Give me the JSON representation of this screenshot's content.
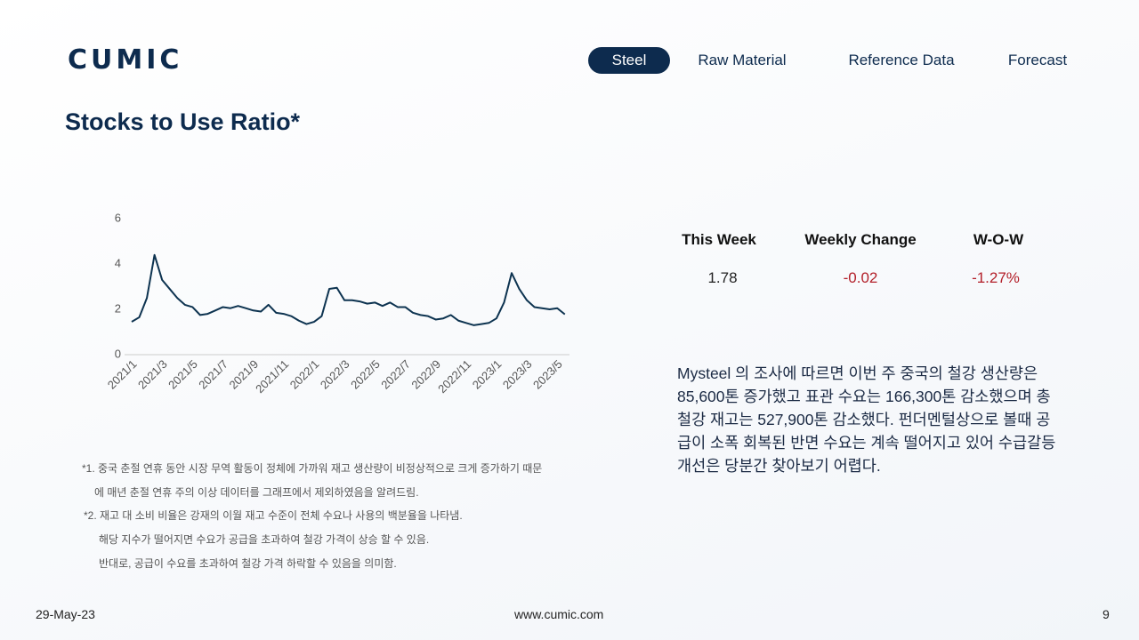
{
  "header": {
    "logo": "CUMIC",
    "nav": [
      "Steel",
      "Raw Material",
      "Reference Data",
      "Forecast"
    ],
    "active_nav": 0
  },
  "title": "Stocks to Use Ratio*",
  "chart_data": {
    "type": "line",
    "color": "#0d3350",
    "grid": false,
    "categories": [
      "2021/1",
      null,
      null,
      null,
      "2021/3",
      null,
      null,
      null,
      "2021/5",
      null,
      null,
      null,
      "2021/7",
      null,
      null,
      null,
      "2021/9",
      null,
      null,
      null,
      "2021/11",
      null,
      null,
      null,
      "2022/1",
      null,
      null,
      null,
      "2022/3",
      null,
      null,
      null,
      "2022/5",
      null,
      null,
      null,
      "2022/7",
      null,
      null,
      null,
      "2022/9",
      null,
      null,
      null,
      "2022/11",
      null,
      null,
      null,
      "2023/1",
      null,
      null,
      null,
      "2023/3",
      null,
      null,
      null,
      "2023/5",
      null
    ],
    "values": [
      1.45,
      1.65,
      2.5,
      4.4,
      3.3,
      2.9,
      2.5,
      2.2,
      2.1,
      1.75,
      1.8,
      1.95,
      2.1,
      2.05,
      2.15,
      2.05,
      1.95,
      1.9,
      2.2,
      1.85,
      1.8,
      1.7,
      1.5,
      1.35,
      1.45,
      1.7,
      2.9,
      2.95,
      2.4,
      2.4,
      2.35,
      2.25,
      2.3,
      2.15,
      2.3,
      2.1,
      2.1,
      1.85,
      1.75,
      1.7,
      1.55,
      1.6,
      1.75,
      1.5,
      1.4,
      1.3,
      1.35,
      1.4,
      1.6,
      2.3,
      3.6,
      2.9,
      2.4,
      2.1,
      2.05,
      2.0,
      2.05,
      1.78
    ],
    "ylim": [
      0,
      6
    ],
    "yticks": [
      0,
      2,
      4,
      6
    ]
  },
  "summary": {
    "headers": [
      "This Week",
      "Weekly Change",
      "W-O-W"
    ],
    "values": [
      "1.78",
      "-0.02",
      "-1.27%"
    ]
  },
  "commentary": "Mysteel 의 조사에 따르면 이번 주 중국의 철강 생산량은 85,600톤 증가했고 표관 수요는 166,300톤 감소했으며 총 철강 재고는 527,900톤 감소했다. 펀더멘털상으로 볼때 공급이 소폭 회복된 반면 수요는 계속 떨어지고 있어 수급갈등 개선은 당분간 찾아보기 어렵다.",
  "notes": [
    "*1. 중국 춘절 연휴 동안 시장 무역 활동이 정체에 가까워 재고 생산량이 비정상적으로 크게 증가하기 때문",
    "에 매년 춘절 연휴 주의 이상 데이터를 그래프에서 제외하였음을 알려드림.",
    "*2. 재고 대 소비 비율은 강재의 이월 재고 수준이 전체 수요나 사용의 백분율을 나타냄.",
    "해당 지수가 떨어지면 수요가 공급을 초과하여 철강 가격이 상승 할 수 있음.",
    "반대로, 공급이 수요를 초과하여 철강 가격 하락할 수 있음을 의미함."
  ],
  "footer": {
    "date": "29-May-23",
    "url": "www.cumic.com",
    "page": "9"
  }
}
